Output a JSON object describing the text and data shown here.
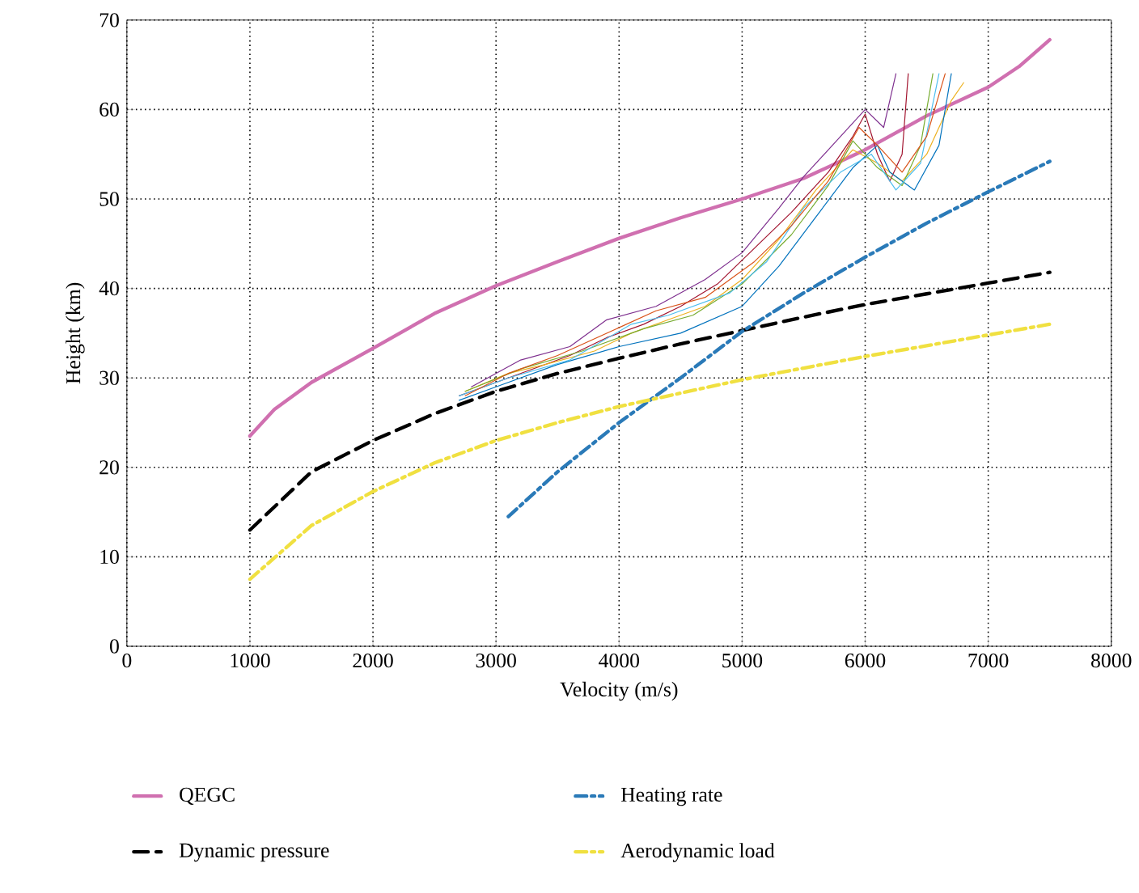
{
  "chart_data": {
    "type": "line",
    "xlabel": "Velocity (m/s)",
    "ylabel": "Height (km)",
    "xlim": [
      0,
      8000
    ],
    "ylim": [
      0,
      70
    ],
    "xticks": [
      0,
      1000,
      2000,
      3000,
      4000,
      5000,
      6000,
      7000,
      8000
    ],
    "yticks": [
      0,
      10,
      20,
      30,
      40,
      50,
      60,
      70
    ],
    "grid": true,
    "legend": "bottom",
    "marker": "none",
    "series": [
      {
        "name": "QEGC",
        "color": "#d070b0",
        "line_style": "solid",
        "x": [
          1000,
          1200,
          1500,
          2000,
          2500,
          3000,
          3500,
          4000,
          4500,
          5000,
          5500,
          6000,
          6500,
          7000,
          7250,
          7500
        ],
        "values": [
          23.5,
          26.5,
          29.5,
          33.3,
          37.2,
          40.3,
          43,
          45.6,
          47.9,
          50,
          52.3,
          55.5,
          59.3,
          62.5,
          64.8,
          67.8
        ]
      },
      {
        "color": "#a2142f",
        "line_style": "solid",
        "x": [
          2700,
          3000,
          3300,
          3600,
          3900,
          4200,
          4500,
          4800,
          5100,
          5400,
          5700,
          5900,
          6000,
          6100,
          6200,
          6300,
          6350
        ],
        "values": [
          28,
          29.5,
          31,
          32.5,
          34.5,
          36,
          38,
          40.5,
          44.5,
          48.5,
          53,
          57,
          59.5,
          55,
          52,
          55,
          64
        ]
      },
      {
        "color": "#edb120",
        "line_style": "solid",
        "x": [
          2750,
          3100,
          3400,
          3800,
          4100,
          4400,
          4700,
          5000,
          5300,
          5600,
          5900,
          6100,
          6300,
          6500,
          6700,
          6800
        ],
        "values": [
          28.5,
          30.5,
          31.5,
          33,
          35,
          36.5,
          38,
          41,
          45.5,
          51,
          55.5,
          54,
          52,
          55,
          61,
          63
        ]
      },
      {
        "color": "#0072bd",
        "line_style": "solid",
        "x": [
          2700,
          3000,
          3500,
          4000,
          4500,
          5000,
          5300,
          5600,
          5900,
          6100,
          6200,
          6400,
          6600,
          6700
        ],
        "values": [
          27.5,
          29,
          31.5,
          33.5,
          35,
          38,
          42.5,
          48,
          53.5,
          56,
          53,
          51,
          56,
          64
        ]
      },
      {
        "color": "#7e2f8e",
        "line_style": "solid",
        "x": [
          2800,
          3200,
          3600,
          3900,
          4300,
          4700,
          5000,
          5300,
          5500,
          5800,
          6000,
          6150,
          6250
        ],
        "values": [
          29,
          32,
          33.5,
          36.5,
          38,
          41,
          44,
          49,
          52.5,
          57,
          60,
          58,
          64
        ]
      },
      {
        "color": "#77ac30",
        "line_style": "solid",
        "x": [
          2750,
          3200,
          3700,
          4200,
          4600,
          5000,
          5400,
          5700,
          5900,
          6100,
          6300,
          6450,
          6550
        ],
        "values": [
          28.5,
          31,
          33,
          35.5,
          37,
          40.5,
          46,
          51.5,
          56.5,
          53.5,
          51.5,
          56,
          64
        ]
      },
      {
        "color": "#4dbeee",
        "line_style": "solid",
        "x": [
          2700,
          3100,
          3600,
          4100,
          4400,
          4900,
          5200,
          5500,
          5800,
          6050,
          6250,
          6450,
          6600
        ],
        "values": [
          28,
          30,
          32,
          36,
          37,
          39.5,
          43,
          49,
          53,
          55,
          51,
          54,
          64
        ]
      },
      {
        "color": "#d95319",
        "line_style": "solid",
        "x": [
          2750,
          3100,
          3500,
          3900,
          4300,
          4700,
          5100,
          5400,
          5700,
          5950,
          6100,
          6300,
          6500,
          6650
        ],
        "values": [
          28,
          30.5,
          32.5,
          35,
          37.5,
          39,
          43,
          47,
          52,
          58,
          56,
          53,
          57,
          64
        ]
      },
      {
        "name": "Dynamic pressure",
        "color": "#000000",
        "line_style": "dashed",
        "x": [
          1000,
          1500,
          2000,
          2500,
          3000,
          3500,
          4000,
          4500,
          5000,
          5500,
          6000,
          6500,
          7000,
          7500
        ],
        "values": [
          13,
          19.5,
          23,
          26,
          28.5,
          30.5,
          32.2,
          33.8,
          35.3,
          36.8,
          38.2,
          39.4,
          40.6,
          41.8
        ]
      },
      {
        "name": "Heating rate",
        "color": "#2a7ab8",
        "line_style": "dashdot",
        "x": [
          3100,
          3500,
          4000,
          4500,
          5000,
          5500,
          6000,
          6500,
          7000,
          7500
        ],
        "values": [
          14.5,
          19.5,
          25,
          30,
          35.2,
          39.5,
          43.5,
          47.3,
          50.8,
          54.2
        ]
      },
      {
        "name": "Aerodynamic load",
        "color": "#f0e040",
        "line_style": "dashdot",
        "x": [
          1000,
          1500,
          2000,
          2500,
          3000,
          3500,
          4000,
          4500,
          5000,
          5500,
          6000,
          6500,
          7000,
          7500
        ],
        "values": [
          7.5,
          13.5,
          17.3,
          20.5,
          23,
          25,
          26.8,
          28.3,
          29.8,
          31.1,
          32.4,
          33.6,
          34.8,
          36
        ]
      }
    ]
  }
}
